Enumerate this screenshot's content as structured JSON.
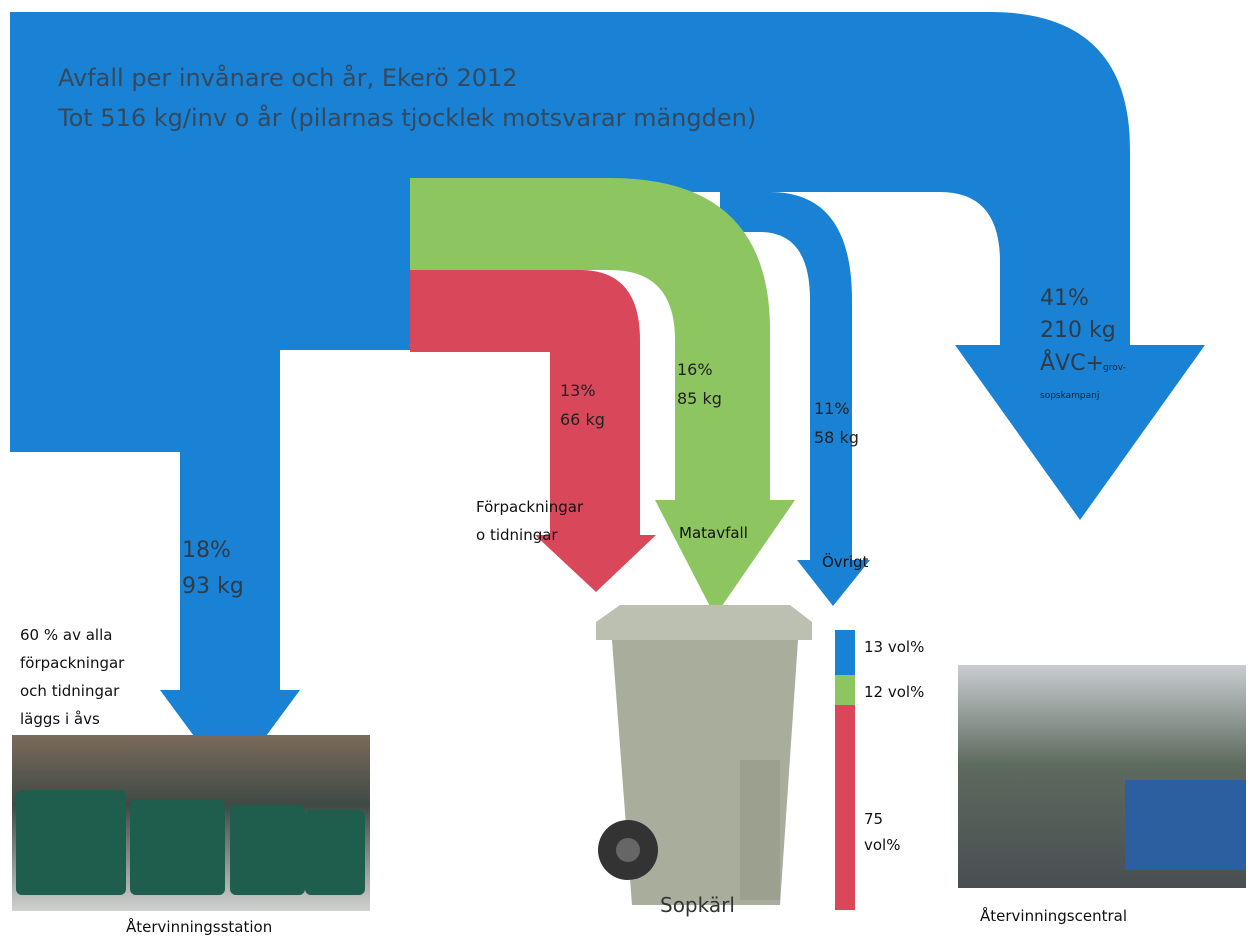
{
  "title": {
    "line1": "Avfall per invånare  och år, Ekerö 2012",
    "line2": "Tot 516 kg/inv  o år (pilarnas  tjocklek motsvarar mängden)"
  },
  "flows": [
    {
      "percent": "18%",
      "amount": "93 kg"
    },
    {
      "percent": "13%",
      "amount": "66 kg",
      "label": [
        "Förpackningar",
        "o tidningar"
      ]
    },
    {
      "percent": "16%",
      "amount": "85 kg",
      "label": [
        "Matavfall"
      ]
    },
    {
      "percent": "11%",
      "amount": "58 kg",
      "label": [
        "Övrigt"
      ]
    },
    {
      "percent": "41%",
      "amount": "210 kg",
      "label": [
        "ÅVC+",
        "grov-",
        "sopskampanj"
      ]
    }
  ],
  "note": [
    "60 % av alla",
    "förpackningar",
    "och tidningar",
    "läggs i åvs"
  ],
  "volumes": [
    "13 vol%",
    "12 vol%",
    "75",
    "vol%"
  ],
  "captions": [
    "Återvinningsstation",
    "Sopkärl",
    "Återvinningscentral"
  ]
}
